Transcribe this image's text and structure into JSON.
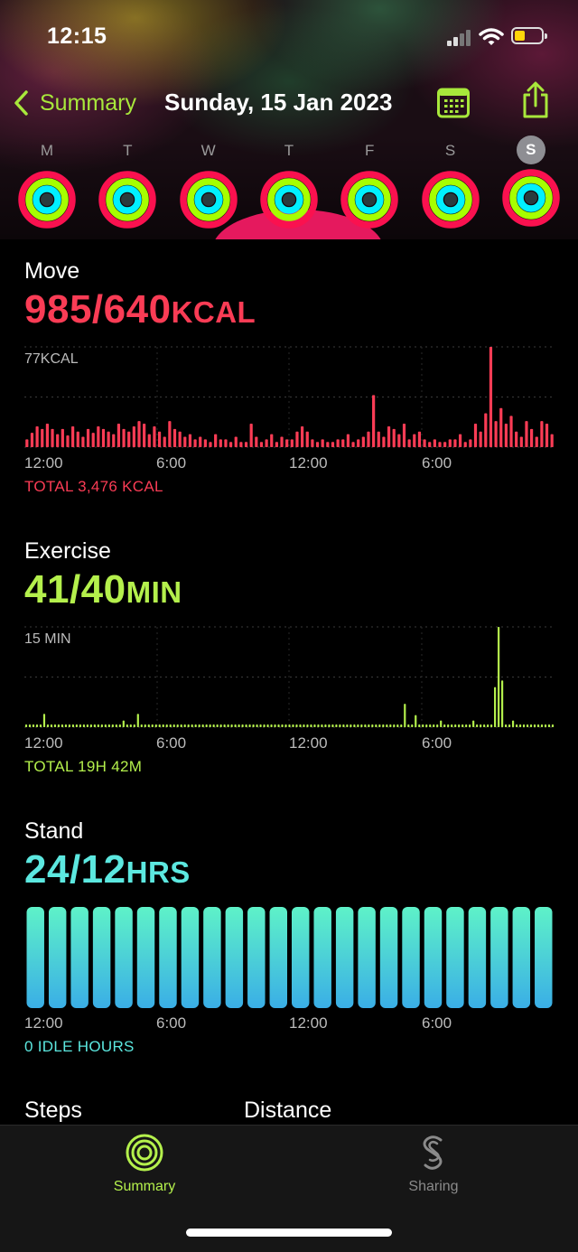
{
  "status_bar": {
    "time": "12:15"
  },
  "nav": {
    "back_label": "Summary",
    "title": "Sunday, 15 Jan 2023"
  },
  "week": {
    "days": [
      "M",
      "T",
      "W",
      "T",
      "F",
      "S",
      "S"
    ],
    "selected_index": 6,
    "ring_colors": {
      "move": "#fa114f",
      "exercise": "#a6ff00",
      "stand": "#00f0ff"
    }
  },
  "move": {
    "label": "Move",
    "value": "985/640",
    "unit": "KCAL",
    "color": "#fa3c55",
    "chart_label": "77KCAL",
    "total": "TOTAL 3,476 KCAL"
  },
  "exercise": {
    "label": "Exercise",
    "value": "41/40",
    "unit": "MIN",
    "color": "#b4f04c",
    "chart_label": "15 MIN",
    "total": "TOTAL 19H 42M"
  },
  "stand": {
    "label": "Stand",
    "value": "24/12",
    "unit": "HRS",
    "color": "#5ce8e0",
    "total": "0 IDLE HOURS"
  },
  "x_axis_labels": [
    "12:00",
    "6:00",
    "12:00",
    "6:00"
  ],
  "bottom": {
    "steps_label": "Steps",
    "distance_label": "Distance"
  },
  "tabs": {
    "summary": "Summary",
    "sharing": "Sharing"
  },
  "chart_data": [
    {
      "type": "bar",
      "title": "Move",
      "ylabel": "77KCAL",
      "x_ticks": [
        "12:00",
        "6:00",
        "12:00",
        "6:00"
      ],
      "ylim": [
        0,
        77
      ],
      "values": [
        6,
        11,
        16,
        14,
        18,
        14,
        10,
        14,
        9,
        16,
        12,
        8,
        14,
        11,
        16,
        14,
        12,
        10,
        18,
        14,
        12,
        16,
        20,
        18,
        10,
        16,
        12,
        8,
        20,
        14,
        12,
        8,
        10,
        6,
        8,
        6,
        4,
        10,
        6,
        6,
        4,
        8,
        4,
        4,
        18,
        8,
        4,
        6,
        10,
        4,
        8,
        6,
        6,
        12,
        16,
        12,
        6,
        4,
        6,
        4,
        4,
        6,
        6,
        10,
        4,
        6,
        8,
        12,
        40,
        12,
        8,
        16,
        14,
        10,
        18,
        6,
        10,
        12,
        6,
        4,
        6,
        4,
        4,
        6,
        6,
        10,
        4,
        6,
        18,
        12,
        26,
        77,
        20,
        30,
        18,
        24,
        12,
        8,
        20,
        14,
        8,
        20,
        18,
        10
      ]
    },
    {
      "type": "bar",
      "title": "Exercise",
      "ylabel": "15 MIN",
      "x_ticks": [
        "12:00",
        "6:00",
        "12:00",
        "6:00"
      ],
      "ylim": [
        0,
        15
      ],
      "values": [
        0.4,
        0.4,
        0.4,
        0.4,
        0.4,
        2,
        0.4,
        0.4,
        0.4,
        0.4,
        0.4,
        0.4,
        0.4,
        0.4,
        0.4,
        0.4,
        0.4,
        0.4,
        0.4,
        0.4,
        0.4,
        0.4,
        0.4,
        0.4,
        0.4,
        0.4,
        0.4,
        1,
        0.4,
        0.4,
        0.4,
        2,
        0.4,
        0.4,
        0.4,
        0.4,
        0.4,
        0.4,
        0.4,
        0.4,
        0.4,
        0.4,
        0.4,
        0.4,
        0.4,
        0.4,
        0.4,
        0.4,
        0.4,
        0.4,
        0.4,
        0.4,
        0.4,
        0.4,
        0.4,
        0.4,
        0.4,
        0.4,
        0.4,
        0.4,
        0.4,
        0.4,
        0.4,
        0.4,
        0.4,
        0.4,
        0.4,
        0.4,
        0.4,
        0.4,
        0.4,
        0.4,
        0.4,
        0.4,
        0.4,
        0.4,
        0.4,
        0.4,
        0.4,
        0.4,
        0.4,
        0.4,
        0.4,
        0.4,
        0.4,
        0.4,
        0.4,
        0.4,
        0.4,
        0.4,
        0.4,
        0.4,
        0.4,
        0.4,
        0.4,
        0.4,
        0.4,
        0.4,
        0.4,
        0.4,
        0.4,
        0.4,
        0.4,
        0.4,
        0.4,
        3.5,
        0.4,
        0.4,
        1.8,
        0.4,
        0.4,
        0.4,
        0.4,
        0.4,
        0.4,
        1,
        0.4,
        0.4,
        0.4,
        0.4,
        0.4,
        0.4,
        0.4,
        0.4,
        1,
        0.4,
        0.4,
        0.4,
        0.4,
        0.4,
        6,
        15,
        7,
        0.4,
        0.4,
        1,
        0.4,
        0.4,
        0.4,
        0.4,
        0.4,
        0.4,
        0.4,
        0.4,
        0.4,
        0.4,
        0.4
      ]
    },
    {
      "type": "bar",
      "title": "Stand",
      "x_ticks": [
        "12:00",
        "6:00",
        "12:00",
        "6:00"
      ],
      "ylim": [
        0,
        1
      ],
      "values": [
        1,
        1,
        1,
        1,
        1,
        1,
        1,
        1,
        1,
        1,
        1,
        1,
        1,
        1,
        1,
        1,
        1,
        1,
        1,
        1,
        1,
        1,
        1,
        1
      ]
    }
  ]
}
